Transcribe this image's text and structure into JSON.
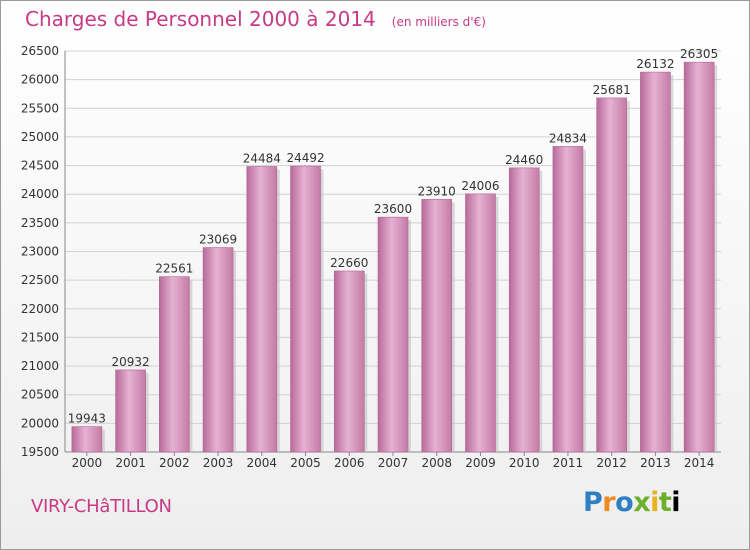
{
  "title": "Charges de Personnel 2000 à 2014",
  "subtitle": "(en milliers d'€)",
  "city": "VIRY-CHâTILLON",
  "logo": [
    "P",
    "r",
    "o",
    "x",
    "i",
    "t",
    "i"
  ],
  "colors": {
    "title": "#c73a86",
    "bar": "#cf80b0",
    "bar_light": "#e7b5d6",
    "bar_dark": "#b56797"
  },
  "chart_data": {
    "type": "bar",
    "categories": [
      "2000",
      "2001",
      "2002",
      "2003",
      "2004",
      "2005",
      "2006",
      "2007",
      "2008",
      "2009",
      "2010",
      "2011",
      "2012",
      "2013",
      "2014"
    ],
    "values": [
      19943,
      20932,
      22561,
      23069,
      24484,
      24492,
      22660,
      23600,
      23910,
      24006,
      24460,
      24834,
      25681,
      26132,
      26305
    ],
    "ylim": [
      19500,
      26500
    ],
    "yticks": [
      19500,
      20000,
      20500,
      21000,
      21500,
      22000,
      22500,
      23000,
      23500,
      24000,
      24500,
      25000,
      25500,
      26000,
      26500
    ],
    "grid": true
  }
}
